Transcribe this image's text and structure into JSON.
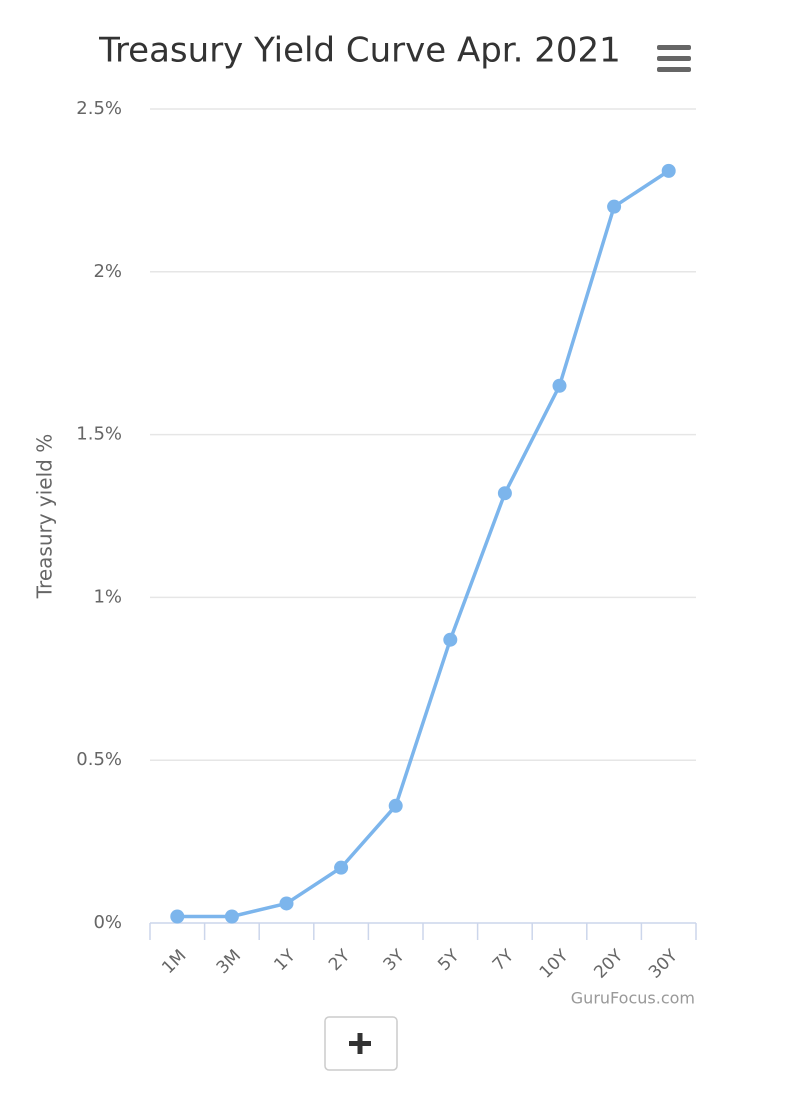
{
  "chart_data": {
    "type": "line",
    "title": "Treasury Yield Curve Apr. 2021",
    "y_label": "Treasury yield %",
    "credits": "GuruFocus.com",
    "categories": [
      "1M",
      "3M",
      "1Y",
      "2Y",
      "3Y",
      "5Y",
      "7Y",
      "10Y",
      "20Y",
      "30Y"
    ],
    "series": [
      {
        "name": "Treasury yield",
        "color": "#7cb5ec",
        "values": [
          0.02,
          0.02,
          0.06,
          0.17,
          0.36,
          0.87,
          1.32,
          1.65,
          2.2,
          2.31
        ]
      }
    ],
    "ylim": [
      0,
      2.5
    ],
    "yticks": [
      {
        "value": 0,
        "label": "0%"
      },
      {
        "value": 0.5,
        "label": "0.5%"
      },
      {
        "value": 1,
        "label": "1%"
      },
      {
        "value": 1.5,
        "label": "1.5%"
      },
      {
        "value": 2,
        "label": "2%"
      },
      {
        "value": 2.5,
        "label": "2.5%"
      }
    ],
    "grid": true
  }
}
